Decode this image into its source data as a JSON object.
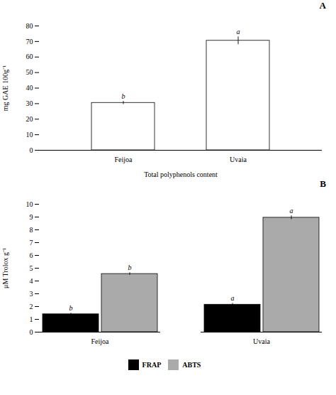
{
  "chart_data": [
    {
      "type": "bar",
      "title": "A",
      "categories": [
        "Feijoa",
        "Uvaia"
      ],
      "values": [
        30.5,
        70.5
      ],
      "errors": [
        1.0,
        2.5
      ],
      "annotations": [
        "b",
        "a"
      ],
      "colors": [
        "white",
        "white"
      ],
      "xlabel": "Total polyphenols content",
      "ylabel": "mg GAE 100g⁻¹",
      "ylim": [
        0,
        80
      ],
      "yticks": [
        0,
        10,
        20,
        30,
        40,
        50,
        60,
        70,
        80
      ],
      "grid": false
    },
    {
      "type": "bar",
      "title": "B",
      "categories": [
        "Feijoa",
        "Uvaia"
      ],
      "series": [
        {
          "name": "FRAP",
          "color": "#000000",
          "values": [
            1.4,
            2.15
          ],
          "errors": [
            0.08,
            0.1
          ],
          "annotations": [
            "b",
            "a"
          ]
        },
        {
          "name": "ABTS",
          "color": "#aaaaaa",
          "values": [
            4.55,
            8.95
          ],
          "errors": [
            0.1,
            0.15
          ],
          "annotations": [
            "b",
            "a"
          ]
        }
      ],
      "ylabel": "μM Trolox g⁻¹",
      "ylim": [
        0,
        10
      ],
      "yticks": [
        0,
        1,
        2,
        3,
        4,
        5,
        6,
        7,
        8,
        9,
        10
      ],
      "grid": false,
      "legend": "bottom"
    }
  ]
}
